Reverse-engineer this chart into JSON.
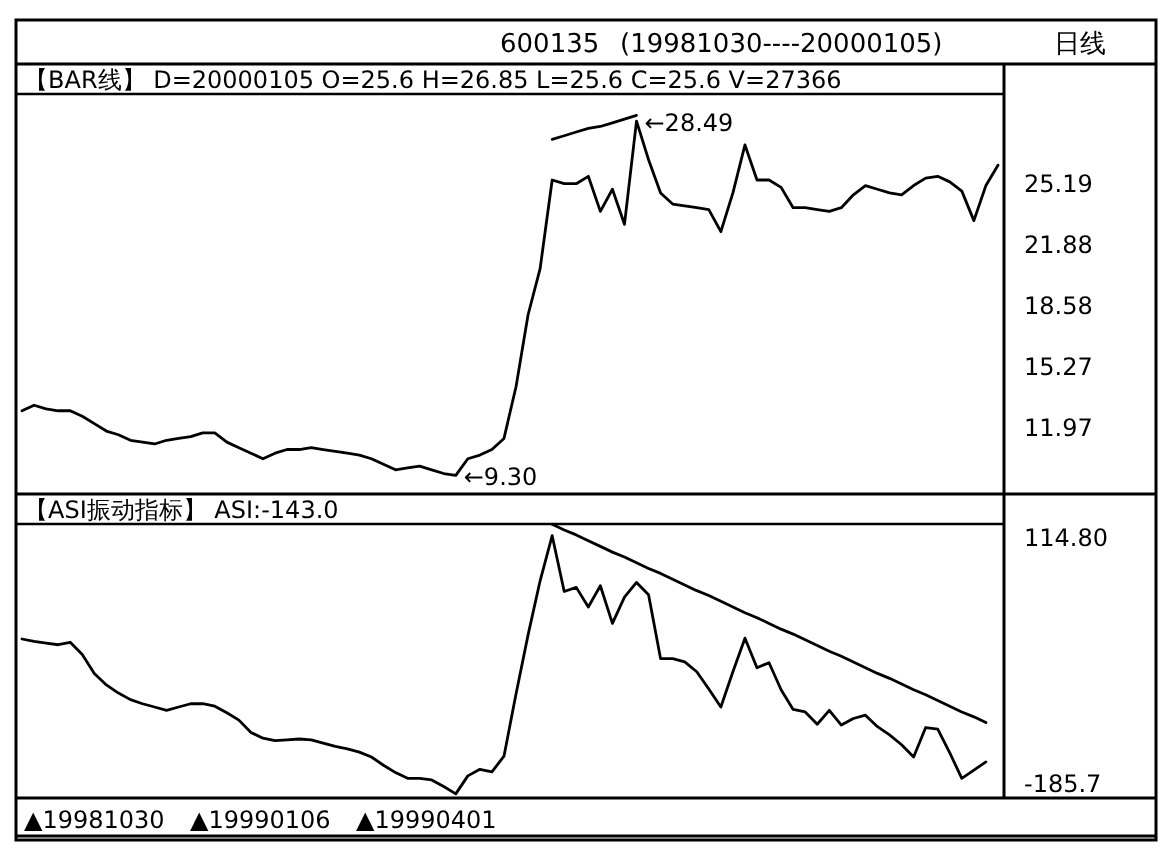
{
  "chart_data": [
    {
      "type": "other",
      "title": "600135",
      "subtitle": "(19981030----20000105)",
      "annotations": [
        "日线"
      ]
    },
    {
      "type": "line",
      "title": "【BAR线】 D=20000105 O=25.6 H=26.85 L=25.6 C=25.6 V=27366",
      "categories": [
        null,
        null,
        null,
        null,
        null,
        null,
        null,
        null,
        null,
        null,
        null,
        null,
        null,
        null,
        null,
        null,
        null,
        null,
        null,
        null,
        null,
        null,
        null,
        null,
        null,
        null,
        null,
        null,
        null,
        null,
        null,
        null,
        null,
        null,
        null,
        null,
        null,
        null,
        null,
        null,
        null,
        null,
        null,
        null,
        null,
        null,
        null,
        null,
        null,
        null,
        null,
        null,
        null,
        null,
        null,
        null,
        null,
        null,
        null,
        null,
        null,
        null,
        null,
        null,
        null,
        null,
        null,
        null,
        null,
        null,
        null,
        null,
        null,
        null,
        null,
        null,
        null,
        null,
        null,
        null,
        null,
        null
      ],
      "series": [
        {
          "color": "#000000",
          "values": [
            12.8,
            13.1,
            12.9,
            12.8,
            12.8,
            12.5,
            12.1,
            11.7,
            11.5,
            11.2,
            11.1,
            11.0,
            11.2,
            11.3,
            11.4,
            11.6,
            11.6,
            11.1,
            10.8,
            10.5,
            10.2,
            10.5,
            10.7,
            10.7,
            10.8,
            10.7,
            10.6,
            10.5,
            10.4,
            10.2,
            9.9,
            9.6,
            9.7,
            9.8,
            9.6,
            9.4,
            9.3,
            10.2,
            10.4,
            10.7,
            11.3,
            14.1,
            18.0,
            20.5,
            25.3,
            25.1,
            25.1,
            25.5,
            23.6,
            24.8,
            22.9,
            28.49,
            26.4,
            24.6,
            24.0,
            23.9,
            23.8,
            23.7,
            22.5,
            24.6,
            27.2,
            25.3,
            25.3,
            24.9,
            23.8,
            23.8,
            23.7,
            23.6,
            23.8,
            24.5,
            25.0,
            24.8,
            24.6,
            24.5,
            25.0,
            25.4,
            25.5,
            25.2,
            24.7,
            23.1,
            25.0,
            26.1
          ]
        },
        {
          "color": "#000000",
          "values": [
            null,
            null,
            null,
            null,
            null,
            null,
            null,
            null,
            null,
            null,
            null,
            null,
            null,
            null,
            null,
            null,
            null,
            null,
            null,
            null,
            null,
            null,
            null,
            null,
            null,
            null,
            null,
            null,
            null,
            null,
            null,
            null,
            null,
            null,
            null,
            null,
            null,
            null,
            null,
            null,
            null,
            null,
            null,
            null,
            27.5,
            27.7,
            27.9,
            28.1,
            28.2,
            28.4,
            28.6,
            28.8,
            null,
            null,
            null,
            null,
            null,
            null,
            null,
            null,
            null,
            null,
            null,
            null,
            null,
            null,
            null,
            null,
            null,
            null,
            null,
            null,
            null,
            null,
            null,
            null,
            null,
            null,
            null,
            null,
            null,
            null
          ]
        }
      ],
      "ylim": [
        8.29,
        29.96
      ],
      "yticks": [
        11.97,
        15.27,
        18.58,
        21.88,
        25.19
      ],
      "annotations": [
        "←28.49",
        "←9.30"
      ]
    },
    {
      "type": "line",
      "title": "【ASI振动指标】 ASI:-143.0",
      "categories": [
        null,
        null,
        null,
        null,
        null,
        null,
        null,
        null,
        null,
        null,
        null,
        null,
        null,
        null,
        null,
        null,
        null,
        null,
        null,
        null,
        null,
        null,
        null,
        null,
        null,
        null,
        null,
        null,
        null,
        null,
        null,
        null,
        null,
        null,
        null,
        null,
        null,
        null,
        null,
        null,
        null,
        null,
        null,
        null,
        null,
        null,
        null,
        null,
        null,
        null,
        null,
        null,
        null,
        null,
        null,
        null,
        null,
        null,
        null,
        null,
        null,
        null,
        null,
        null,
        null,
        null,
        null,
        null,
        null,
        null,
        null,
        null,
        null,
        null,
        null,
        null,
        null,
        null,
        null,
        null,
        null,
        null
      ],
      "series": [
        {
          "color": "#000000",
          "values": [
            -11,
            -14,
            -16,
            -18,
            -15,
            -30,
            -53,
            -67,
            -77,
            -85,
            -90,
            -94,
            -98,
            -94,
            -90,
            -90,
            -93,
            -101,
            -110,
            -125,
            -132,
            -135,
            -134,
            -133,
            -134,
            -138,
            -142,
            -145,
            -149,
            -155,
            -165,
            -174,
            -181,
            -181,
            -183,
            -191,
            -200,
            -178,
            -170,
            -173,
            -154,
            -78,
            -6,
            60,
            115,
            47,
            52,
            28,
            54,
            8,
            40,
            58,
            43,
            -35,
            -35,
            -39,
            -51,
            -72,
            -94,
            -51,
            -10,
            -46,
            -40,
            -73,
            -97,
            -100,
            -115,
            -98,
            -116,
            -108,
            -104,
            -118,
            -128,
            -140,
            -155,
            -119,
            -121,
            -150,
            -181,
            -171,
            -161,
            null
          ]
        },
        {
          "color": "#000000",
          "values": [
            null,
            null,
            null,
            null,
            null,
            null,
            null,
            null,
            null,
            null,
            null,
            null,
            null,
            null,
            null,
            null,
            null,
            null,
            null,
            null,
            null,
            null,
            null,
            null,
            null,
            null,
            null,
            null,
            null,
            null,
            null,
            null,
            null,
            null,
            null,
            null,
            null,
            null,
            null,
            null,
            null,
            null,
            null,
            null,
            129,
            122,
            116,
            109,
            102,
            95,
            89,
            82,
            75,
            69,
            62,
            55,
            48,
            42,
            35,
            28,
            21,
            15,
            8,
            1,
            -5,
            -12,
            -19,
            -26,
            -32,
            -39,
            -46,
            -53,
            -59,
            -66,
            -73,
            -79,
            -86,
            -93,
            -100,
            -106,
            -113,
            null
          ]
        }
      ],
      "ylim": [
        -205,
        129.3
      ],
      "yticks": [
        {
          "value": -185.7,
          "label": "-185.7"
        },
        {
          "value": 114.8,
          "label": "114.80"
        }
      ],
      "annotations": [
        "▲19981030",
        "▲19990106",
        "▲19990401"
      ]
    }
  ]
}
